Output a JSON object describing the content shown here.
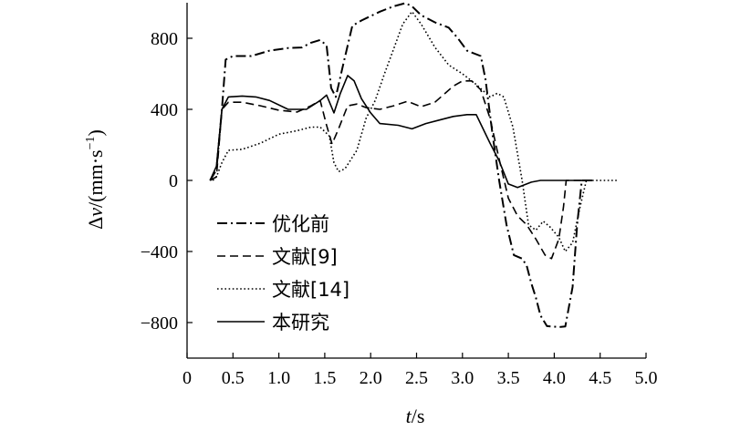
{
  "chart_data": {
    "type": "line",
    "title": "",
    "xlabel": {
      "italic": "t",
      "rest": "/s"
    },
    "ylabel": {
      "italic": "v",
      "prefix": "Δ",
      "rest": "/(mm·s",
      "sup": "−1",
      "close": ")"
    },
    "xlim": [
      0,
      5.0
    ],
    "ylim": [
      -1000,
      1000
    ],
    "x_ticks": [
      0,
      0.5,
      1.0,
      1.5,
      2.0,
      2.5,
      3.0,
      3.5,
      4.0,
      4.5,
      5.0
    ],
    "x_tick_labels": [
      "0",
      "0.5",
      "1.0",
      "1.5",
      "2.0",
      "2.5",
      "3.0",
      "3.5",
      "4.0",
      "4.5",
      "5.0"
    ],
    "y_ticks": [
      -800,
      -400,
      0,
      400,
      800
    ],
    "y_tick_labels": [
      "−800",
      "−400",
      "0",
      "400",
      "800"
    ],
    "grid": false,
    "legend_position": "lower-left",
    "series": [
      {
        "name": "优化前",
        "dash": "dashdot",
        "points": [
          [
            0.25,
            0
          ],
          [
            0.32,
            60
          ],
          [
            0.38,
            400
          ],
          [
            0.42,
            680
          ],
          [
            0.5,
            700
          ],
          [
            0.7,
            700
          ],
          [
            0.9,
            730
          ],
          [
            1.1,
            745
          ],
          [
            1.25,
            748
          ],
          [
            1.35,
            775
          ],
          [
            1.45,
            790
          ],
          [
            1.52,
            760
          ],
          [
            1.57,
            520
          ],
          [
            1.62,
            470
          ],
          [
            1.7,
            650
          ],
          [
            1.8,
            870
          ],
          [
            1.9,
            900
          ],
          [
            2.1,
            950
          ],
          [
            2.25,
            980
          ],
          [
            2.38,
            998
          ],
          [
            2.45,
            980
          ],
          [
            2.55,
            930
          ],
          [
            2.7,
            890
          ],
          [
            2.85,
            860
          ],
          [
            2.95,
            800
          ],
          [
            3.05,
            730
          ],
          [
            3.2,
            700
          ],
          [
            3.25,
            570
          ],
          [
            3.33,
            250
          ],
          [
            3.4,
            0
          ],
          [
            3.48,
            -250
          ],
          [
            3.56,
            -420
          ],
          [
            3.65,
            -440
          ],
          [
            3.7,
            -480
          ],
          [
            3.75,
            -580
          ],
          [
            3.8,
            -660
          ],
          [
            3.85,
            -760
          ],
          [
            3.92,
            -820
          ],
          [
            4.05,
            -825
          ],
          [
            4.12,
            -822
          ],
          [
            4.2,
            -600
          ],
          [
            4.25,
            -250
          ],
          [
            4.3,
            0
          ],
          [
            4.45,
            0
          ]
        ]
      },
      {
        "name": "文献[9]",
        "dash": "dash",
        "points": [
          [
            0.25,
            0
          ],
          [
            0.32,
            20
          ],
          [
            0.38,
            400
          ],
          [
            0.45,
            440
          ],
          [
            0.6,
            440
          ],
          [
            0.8,
            420
          ],
          [
            1.0,
            395
          ],
          [
            1.2,
            385
          ],
          [
            1.35,
            420
          ],
          [
            1.45,
            450
          ],
          [
            1.52,
            310
          ],
          [
            1.58,
            205
          ],
          [
            1.65,
            290
          ],
          [
            1.75,
            420
          ],
          [
            1.85,
            430
          ],
          [
            1.95,
            410
          ],
          [
            2.1,
            400
          ],
          [
            2.25,
            420
          ],
          [
            2.4,
            445
          ],
          [
            2.55,
            415
          ],
          [
            2.7,
            440
          ],
          [
            2.9,
            530
          ],
          [
            3.0,
            560
          ],
          [
            3.1,
            560
          ],
          [
            3.2,
            510
          ],
          [
            3.3,
            350
          ],
          [
            3.4,
            120
          ],
          [
            3.5,
            -100
          ],
          [
            3.6,
            -200
          ],
          [
            3.7,
            -250
          ],
          [
            3.8,
            -330
          ],
          [
            3.9,
            -420
          ],
          [
            3.97,
            -440
          ],
          [
            4.05,
            -330
          ],
          [
            4.1,
            -150
          ],
          [
            4.13,
            0
          ],
          [
            4.3,
            0
          ]
        ]
      },
      {
        "name": "文献[14]",
        "dash": "dot",
        "points": [
          [
            0.28,
            0
          ],
          [
            0.32,
            20
          ],
          [
            0.38,
            100
          ],
          [
            0.45,
            170
          ],
          [
            0.6,
            175
          ],
          [
            0.8,
            210
          ],
          [
            1.0,
            260
          ],
          [
            1.2,
            280
          ],
          [
            1.35,
            300
          ],
          [
            1.45,
            300
          ],
          [
            1.55,
            250
          ],
          [
            1.6,
            100
          ],
          [
            1.65,
            50
          ],
          [
            1.72,
            65
          ],
          [
            1.85,
            170
          ],
          [
            1.95,
            350
          ],
          [
            2.05,
            450
          ],
          [
            2.15,
            600
          ],
          [
            2.25,
            740
          ],
          [
            2.35,
            880
          ],
          [
            2.45,
            950
          ],
          [
            2.55,
            880
          ],
          [
            2.7,
            750
          ],
          [
            2.85,
            650
          ],
          [
            3.0,
            600
          ],
          [
            3.15,
            540
          ],
          [
            3.3,
            470
          ],
          [
            3.38,
            490
          ],
          [
            3.45,
            470
          ],
          [
            3.55,
            300
          ],
          [
            3.65,
            0
          ],
          [
            3.72,
            -250
          ],
          [
            3.8,
            -280
          ],
          [
            3.88,
            -230
          ],
          [
            3.95,
            -260
          ],
          [
            4.05,
            -320
          ],
          [
            4.12,
            -400
          ],
          [
            4.2,
            -350
          ],
          [
            4.28,
            -150
          ],
          [
            4.35,
            0
          ],
          [
            4.7,
            0
          ]
        ]
      },
      {
        "name": "本研究",
        "dash": "solid",
        "points": [
          [
            0.25,
            0
          ],
          [
            0.32,
            80
          ],
          [
            0.38,
            400
          ],
          [
            0.45,
            470
          ],
          [
            0.6,
            475
          ],
          [
            0.75,
            470
          ],
          [
            0.9,
            450
          ],
          [
            1.1,
            400
          ],
          [
            1.3,
            400
          ],
          [
            1.45,
            450
          ],
          [
            1.52,
            480
          ],
          [
            1.6,
            380
          ],
          [
            1.67,
            490
          ],
          [
            1.75,
            590
          ],
          [
            1.82,
            560
          ],
          [
            1.9,
            460
          ],
          [
            2.0,
            380
          ],
          [
            2.1,
            320
          ],
          [
            2.3,
            310
          ],
          [
            2.45,
            290
          ],
          [
            2.6,
            320
          ],
          [
            2.75,
            340
          ],
          [
            2.9,
            360
          ],
          [
            3.05,
            370
          ],
          [
            3.15,
            370
          ],
          [
            3.3,
            210
          ],
          [
            3.4,
            110
          ],
          [
            3.5,
            -20
          ],
          [
            3.6,
            -40
          ],
          [
            3.75,
            -10
          ],
          [
            3.85,
            0
          ],
          [
            4.0,
            0
          ],
          [
            4.35,
            0
          ]
        ]
      }
    ]
  }
}
